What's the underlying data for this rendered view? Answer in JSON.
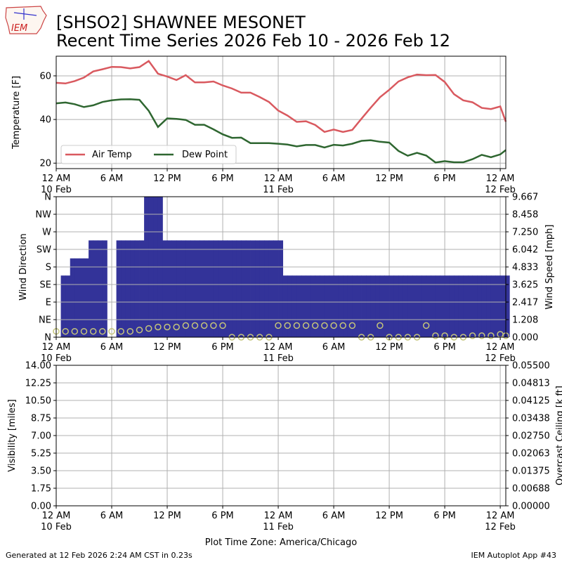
{
  "header": {
    "logo_text": "IEM",
    "title_line1": "[SHSO2] SHAWNEE MESONET",
    "title_line2": "Recent Time Series 2026 Feb 10 - 2026 Feb 12"
  },
  "footer": {
    "generated": "Generated at 12 Feb 2026 2:24 AM CST in 0.23s",
    "app": "IEM Autoplot App #43",
    "timezone": "Plot Time Zone: America/Chicago"
  },
  "time_axis": {
    "ticks": [
      {
        "hour": 0,
        "label": "12 AM",
        "sub": "10 Feb"
      },
      {
        "hour": 6,
        "label": "6 AM",
        "sub": ""
      },
      {
        "hour": 12,
        "label": "12 PM",
        "sub": ""
      },
      {
        "hour": 18,
        "label": "6 PM",
        "sub": ""
      },
      {
        "hour": 24,
        "label": "12 AM",
        "sub": "11 Feb"
      },
      {
        "hour": 30,
        "label": "6 AM",
        "sub": ""
      },
      {
        "hour": 36,
        "label": "12 PM",
        "sub": ""
      },
      {
        "hour": 42,
        "label": "6 PM",
        "sub": ""
      },
      {
        "hour": 48,
        "label": "12 AM",
        "sub": "12 Feb"
      }
    ],
    "range_hours": [
      0,
      48.6
    ]
  },
  "chart_data": [
    {
      "type": "line",
      "ylabel": "Temperature [F]",
      "ylim": [
        17.5,
        69
      ],
      "yticks": [
        20,
        40,
        60
      ],
      "grid": true,
      "legend_placement": "lower-left",
      "series": [
        {
          "name": "Air Temp",
          "color": "#d9595f",
          "x": [
            0,
            1,
            2,
            3,
            4,
            5,
            6,
            7,
            8,
            9,
            10,
            11,
            12,
            13,
            14,
            15,
            16,
            17,
            18,
            19,
            20,
            21,
            22,
            23,
            24,
            25,
            26,
            27,
            28,
            29,
            30,
            31,
            32,
            33,
            34,
            35,
            36,
            37,
            38,
            39,
            40,
            41,
            42,
            43,
            44,
            45,
            46,
            47,
            48,
            48.6
          ],
          "y": [
            56.8,
            56.5,
            57.6,
            59.2,
            62.0,
            63.0,
            64.1,
            64.0,
            63.4,
            64.0,
            66.8,
            61.0,
            59.7,
            58.1,
            60.3,
            57.0,
            57.0,
            57.4,
            55.6,
            54.2,
            52.3,
            52.3,
            50.3,
            48.0,
            44.1,
            41.8,
            38.9,
            39.2,
            37.5,
            34.3,
            35.4,
            34.3,
            35.2,
            40.4,
            45.4,
            50.2,
            53.6,
            57.4,
            59.3,
            60.6,
            60.3,
            60.4,
            57.2,
            51.6,
            48.8,
            47.9,
            45.3,
            44.8,
            46.0,
            39.0
          ]
        },
        {
          "name": "Dew Point",
          "color": "#2e6630",
          "x": [
            0,
            1,
            2,
            3,
            4,
            5,
            6,
            7,
            8,
            9,
            10,
            11,
            12,
            13,
            14,
            15,
            16,
            17,
            18,
            19,
            20,
            21,
            22,
            23,
            24,
            25,
            26,
            27,
            28,
            29,
            30,
            31,
            32,
            33,
            34,
            35,
            36,
            37,
            38,
            39,
            40,
            41,
            42,
            43,
            44,
            45,
            46,
            47,
            48,
            48.6
          ],
          "y": [
            47.4,
            47.8,
            47.0,
            45.7,
            46.5,
            48.0,
            48.8,
            49.2,
            49.3,
            49.0,
            44.0,
            36.6,
            40.5,
            40.3,
            39.8,
            37.6,
            37.6,
            35.5,
            33.2,
            31.6,
            31.7,
            29.2,
            29.2,
            29.2,
            28.9,
            28.5,
            27.7,
            28.3,
            28.3,
            27.2,
            28.4,
            28.1,
            28.9,
            30.2,
            30.5,
            29.8,
            29.4,
            25.6,
            23.4,
            24.7,
            23.5,
            20.3,
            20.9,
            20.4,
            20.4,
            21.8,
            23.8,
            22.7,
            24.0,
            26.0
          ]
        }
      ]
    },
    {
      "type": "bar",
      "ylabel": "Wind Direction",
      "ylabel_right": "Wind Speed [mph]",
      "ylim": [
        0,
        360
      ],
      "yticks": [
        0,
        45,
        90,
        135,
        180,
        225,
        270,
        315,
        360
      ],
      "ytick_labels": [
        "N",
        "NE",
        "E",
        "SE",
        "S",
        "SW",
        "W",
        "NW",
        "N"
      ],
      "y2lim": [
        0,
        9.667
      ],
      "y2ticks": [
        "0.000",
        "1.208",
        "2.417",
        "3.625",
        "4.833",
        "6.042",
        "7.250",
        "8.458",
        "9.667"
      ],
      "grid": true,
      "bar_color": "#333399",
      "marker_color": "#c4c47a",
      "series": [
        {
          "name": "Wind Direction",
          "x": [
            0,
            0.5,
            1,
            1.5,
            2,
            2.5,
            3,
            3.5,
            4,
            4.5,
            5,
            5.5,
            6,
            6.5,
            7,
            7.5,
            8,
            8.5,
            9,
            9.5,
            10,
            10.5,
            11,
            11.5,
            12,
            12.5,
            13,
            13.5,
            14,
            14.5,
            15,
            15.5,
            16,
            16.5,
            17,
            17.5,
            18,
            18.5,
            19,
            19.5,
            20,
            20.5,
            21,
            21.5,
            22,
            22.5,
            23,
            23.5,
            24,
            24.5,
            25,
            25.5,
            26,
            26.5,
            27,
            27.5,
            28,
            28.5,
            29,
            29.5,
            30,
            30.5,
            31,
            31.5,
            32,
            32.5,
            33,
            33.5,
            34,
            34.5,
            35,
            35.5,
            36,
            36.5,
            37,
            37.5,
            38,
            38.5,
            39,
            39.5,
            40,
            40.5,
            41,
            41.5,
            42,
            42.5,
            43,
            43.5,
            44,
            44.5,
            45,
            45.5,
            46,
            46.5,
            47,
            47.5,
            48,
            48.5
          ],
          "values": [
            0,
            158,
            158,
            202,
            202,
            202,
            202,
            248,
            248,
            248,
            248,
            0,
            0,
            248,
            248,
            248,
            248,
            248,
            248,
            360,
            360,
            360,
            360,
            248,
            248,
            248,
            248,
            248,
            248,
            248,
            248,
            248,
            248,
            248,
            248,
            248,
            248,
            248,
            248,
            248,
            248,
            248,
            248,
            248,
            248,
            248,
            248,
            248,
            248,
            158,
            158,
            158,
            158,
            158,
            158,
            158,
            158,
            158,
            158,
            158,
            158,
            158,
            158,
            158,
            158,
            158,
            158,
            158,
            158,
            158,
            158,
            158,
            158,
            158,
            158,
            158,
            158,
            158,
            158,
            158,
            158,
            158,
            158,
            158,
            158,
            158,
            158,
            158,
            158,
            158,
            158,
            158,
            158,
            158,
            158,
            158,
            158,
            158
          ]
        },
        {
          "name": "Wind Speed",
          "x": [
            0,
            1,
            2,
            3,
            4,
            5,
            6,
            7,
            8,
            9,
            10,
            11,
            12,
            13,
            14,
            15,
            16,
            17,
            18,
            19,
            20,
            21,
            22,
            23,
            24,
            25,
            26,
            27,
            28,
            29,
            30,
            31,
            32,
            33,
            34,
            35,
            36,
            37,
            38,
            39,
            40,
            41,
            42,
            43,
            44,
            45,
            46,
            47,
            48,
            48.6
          ],
          "values": [
            0.4,
            0.4,
            0.4,
            0.4,
            0.4,
            0.4,
            0.4,
            0.4,
            0.4,
            0.5,
            0.6,
            0.7,
            0.7,
            0.7,
            0.8,
            0.8,
            0.8,
            0.8,
            0.8,
            0.0,
            0.0,
            0.0,
            0.0,
            0.0,
            0.8,
            0.8,
            0.8,
            0.8,
            0.8,
            0.8,
            0.8,
            0.8,
            0.8,
            0.0,
            0.0,
            0.8,
            0.0,
            0.0,
            0.0,
            0.0,
            0.8,
            0.1,
            0.1,
            0.0,
            0.0,
            0.1,
            0.1,
            0.1,
            0.2,
            0.1
          ]
        }
      ]
    },
    {
      "type": "line",
      "ylabel": "Visibility [miles]",
      "ylabel_right": "Overcast Ceiling [k ft]",
      "ylabel_right_color": "#008000",
      "ylim": [
        0,
        14
      ],
      "yticks": [
        "0.00",
        "1.75",
        "3.50",
        "5.25",
        "7.00",
        "8.75",
        "10.50",
        "12.25",
        "14.00"
      ],
      "y2lim": [
        0,
        0.055
      ],
      "y2ticks": [
        "0.00000",
        "0.00688",
        "0.01375",
        "0.02063",
        "0.02750",
        "0.03438",
        "0.04125",
        "0.04813",
        "0.05500"
      ],
      "grid": true,
      "series": []
    }
  ]
}
